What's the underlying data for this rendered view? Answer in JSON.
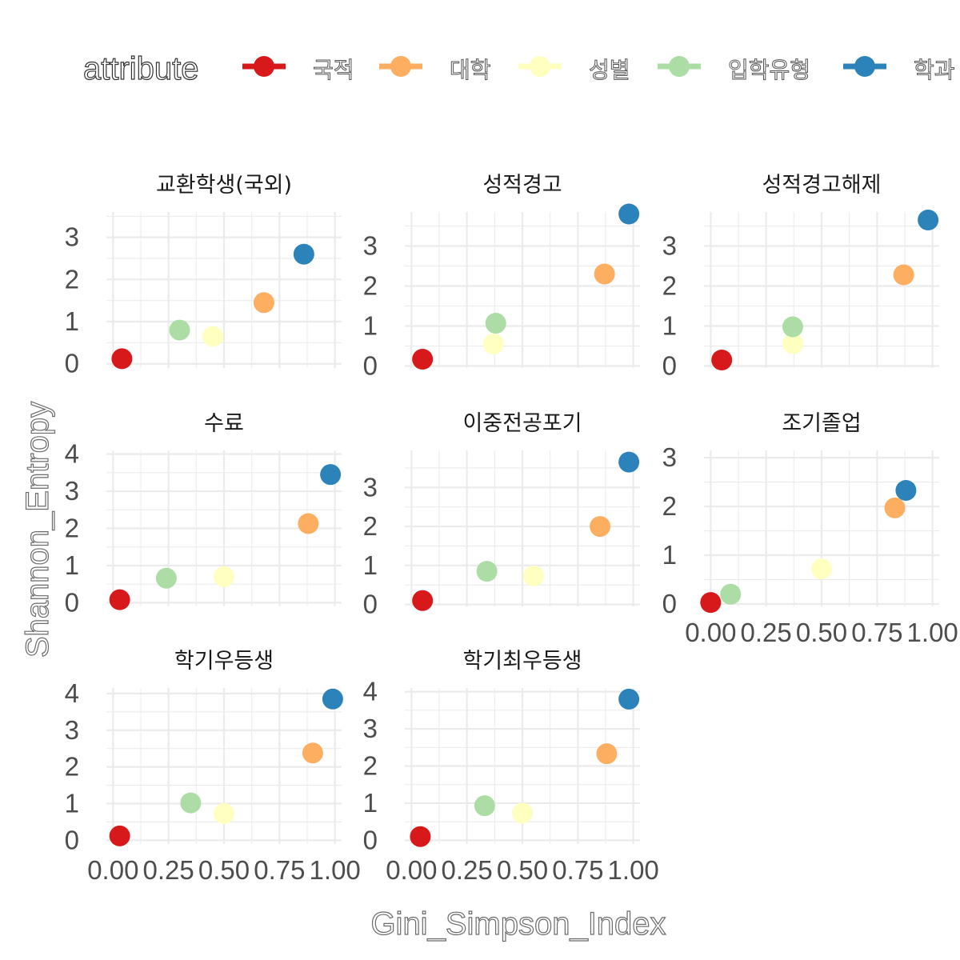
{
  "chart_data": {
    "type": "scatter",
    "xlabel": "Gini_Simpson_Index",
    "ylabel": "Shannon_Entropy",
    "legend": {
      "title": "attribute",
      "position": "top",
      "entries": [
        {
          "name": "국적",
          "color": "#D7191C"
        },
        {
          "name": "대학",
          "color": "#FDAE61"
        },
        {
          "name": "성별",
          "color": "#FFFFBF"
        },
        {
          "name": "입학유형",
          "color": "#ABDDA4"
        },
        {
          "name": "학과",
          "color": "#2B83BA"
        }
      ]
    },
    "grid": true,
    "x_ticks": [
      "0.00",
      "0.25",
      "0.50",
      "0.75",
      "1.00"
    ],
    "panels": [
      {
        "title": "교환학생(국외)",
        "ylim": [
          -0.1,
          3.6
        ],
        "yticks": [
          0,
          1,
          2,
          3
        ],
        "points": [
          {
            "attribute": "국적",
            "x": 0.04,
            "y": 0.12
          },
          {
            "attribute": "대학",
            "x": 0.68,
            "y": 1.45
          },
          {
            "attribute": "성별",
            "x": 0.45,
            "y": 0.65
          },
          {
            "attribute": "입학유형",
            "x": 0.3,
            "y": 0.8
          },
          {
            "attribute": "학과",
            "x": 0.86,
            "y": 2.6
          }
        ]
      },
      {
        "title": "성적경고",
        "ylim": [
          -0.05,
          3.85
        ],
        "yticks": [
          0,
          1,
          2,
          3
        ],
        "points": [
          {
            "attribute": "국적",
            "x": 0.05,
            "y": 0.17
          },
          {
            "attribute": "대학",
            "x": 0.87,
            "y": 2.3
          },
          {
            "attribute": "성별",
            "x": 0.37,
            "y": 0.55
          },
          {
            "attribute": "입학유형",
            "x": 0.38,
            "y": 1.07
          },
          {
            "attribute": "학과",
            "x": 0.98,
            "y": 3.8
          }
        ]
      },
      {
        "title": "성적경고해제",
        "ylim": [
          -0.05,
          3.85
        ],
        "yticks": [
          0,
          1,
          2,
          3
        ],
        "points": [
          {
            "attribute": "국적",
            "x": 0.05,
            "y": 0.15
          },
          {
            "attribute": "대학",
            "x": 0.87,
            "y": 2.28
          },
          {
            "attribute": "성별",
            "x": 0.37,
            "y": 0.56
          },
          {
            "attribute": "입학유형",
            "x": 0.37,
            "y": 0.98
          },
          {
            "attribute": "학과",
            "x": 0.98,
            "y": 3.65
          }
        ]
      },
      {
        "title": "수료",
        "ylim": [
          -0.1,
          4.1
        ],
        "yticks": [
          0,
          1,
          2,
          3,
          4
        ],
        "points": [
          {
            "attribute": "국적",
            "x": 0.03,
            "y": 0.08
          },
          {
            "attribute": "대학",
            "x": 0.88,
            "y": 2.13
          },
          {
            "attribute": "성별",
            "x": 0.5,
            "y": 0.7
          },
          {
            "attribute": "입학유형",
            "x": 0.24,
            "y": 0.66
          },
          {
            "attribute": "학과",
            "x": 0.98,
            "y": 3.45
          }
        ]
      },
      {
        "title": "이중전공포기",
        "ylim": [
          -0.05,
          3.95
        ],
        "yticks": [
          0,
          1,
          2,
          3
        ],
        "points": [
          {
            "attribute": "국적",
            "x": 0.05,
            "y": 0.1
          },
          {
            "attribute": "대학",
            "x": 0.85,
            "y": 2.0
          },
          {
            "attribute": "성별",
            "x": 0.55,
            "y": 0.73
          },
          {
            "attribute": "입학유형",
            "x": 0.34,
            "y": 0.85
          },
          {
            "attribute": "학과",
            "x": 0.98,
            "y": 3.65
          }
        ]
      },
      {
        "title": "조기졸업",
        "ylim": [
          -0.05,
          3.15
        ],
        "yticks": [
          0,
          1,
          2,
          3
        ],
        "points": [
          {
            "attribute": "국적",
            "x": 0.0,
            "y": 0.03
          },
          {
            "attribute": "대학",
            "x": 0.83,
            "y": 1.97
          },
          {
            "attribute": "성별",
            "x": 0.5,
            "y": 0.72
          },
          {
            "attribute": "입학유형",
            "x": 0.09,
            "y": 0.2
          },
          {
            "attribute": "학과",
            "x": 0.88,
            "y": 2.33
          }
        ]
      },
      {
        "title": "학기우등생",
        "ylim": [
          -0.1,
          4.15
        ],
        "yticks": [
          0,
          1,
          2,
          3,
          4
        ],
        "points": [
          {
            "attribute": "국적",
            "x": 0.03,
            "y": 0.12
          },
          {
            "attribute": "대학",
            "x": 0.9,
            "y": 2.38
          },
          {
            "attribute": "성별",
            "x": 0.5,
            "y": 0.73
          },
          {
            "attribute": "입학유형",
            "x": 0.35,
            "y": 1.02
          },
          {
            "attribute": "학과",
            "x": 0.99,
            "y": 3.85
          }
        ]
      },
      {
        "title": "학기최우등생",
        "ylim": [
          -0.1,
          4.1
        ],
        "yticks": [
          0,
          1,
          2,
          3,
          4
        ],
        "points": [
          {
            "attribute": "국적",
            "x": 0.04,
            "y": 0.1
          },
          {
            "attribute": "대학",
            "x": 0.88,
            "y": 2.33
          },
          {
            "attribute": "성별",
            "x": 0.5,
            "y": 0.73
          },
          {
            "attribute": "입학유형",
            "x": 0.33,
            "y": 0.93
          },
          {
            "attribute": "학과",
            "x": 0.98,
            "y": 3.8
          }
        ]
      }
    ]
  }
}
